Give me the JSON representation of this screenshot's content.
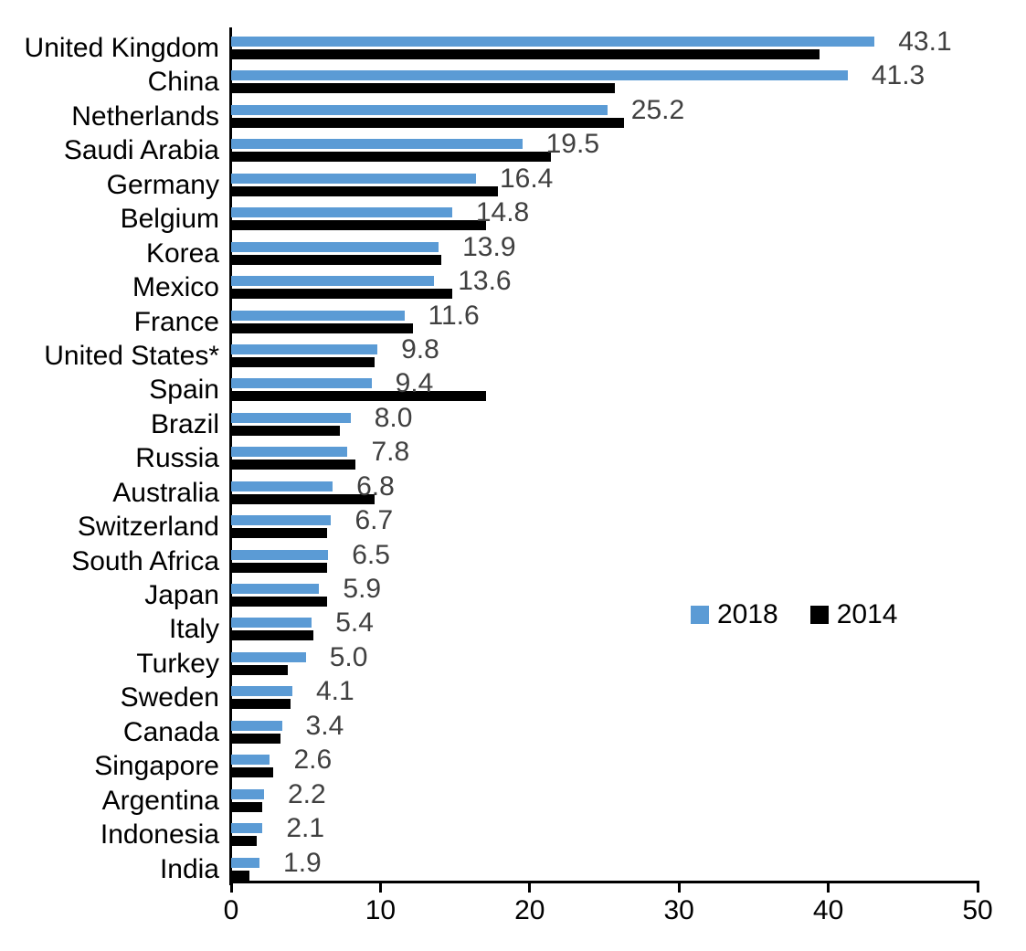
{
  "chart_data": {
    "type": "bar",
    "orientation": "horizontal",
    "title": "",
    "xlabel": "",
    "ylabel": "",
    "xlim": [
      0,
      50
    ],
    "x_ticks": [
      "0",
      "10",
      "20",
      "30",
      "40",
      "50"
    ],
    "grid": false,
    "legend_position": "middle-right",
    "categories": [
      "United Kingdom",
      "China",
      "Netherlands",
      "Saudi Arabia",
      "Germany",
      "Belgium",
      "Korea",
      "Mexico",
      "France",
      "United States*",
      "Spain",
      "Brazil",
      "Russia",
      "Australia",
      "Switzerland",
      "South Africa",
      "Japan",
      "Italy",
      "Turkey",
      "Sweden",
      "Canada",
      "Singapore",
      "Argentina",
      "Indonesia",
      "India"
    ],
    "series": [
      {
        "name": "2018",
        "color": "#5B9BD5",
        "values": [
          43.1,
          41.3,
          25.2,
          19.5,
          16.4,
          14.8,
          13.9,
          13.6,
          11.6,
          9.8,
          9.4,
          8.0,
          7.8,
          6.8,
          6.7,
          6.5,
          5.9,
          5.4,
          5.0,
          4.1,
          3.4,
          2.6,
          2.2,
          2.1,
          1.9
        ],
        "data_labels": [
          "43.1",
          "41.3",
          "25.2",
          "19.5",
          "16.4",
          "14.8",
          "13.9",
          "13.6",
          "11.6",
          "9.8",
          "9.4",
          "8.0",
          "7.8",
          "6.8",
          "6.7",
          "6.5",
          "5.9",
          "5.4",
          "5.0",
          "4.1",
          "3.4",
          "2.6",
          "2.2",
          "2.1",
          "1.9"
        ]
      },
      {
        "name": "2014",
        "color": "#000000",
        "values": [
          39.4,
          25.7,
          26.3,
          21.4,
          17.9,
          17.1,
          14.1,
          14.8,
          12.2,
          9.6,
          17.1,
          7.3,
          8.3,
          9.6,
          6.4,
          6.4,
          6.4,
          5.5,
          3.8,
          4.0,
          3.3,
          2.8,
          2.1,
          1.7,
          1.2
        ]
      }
    ],
    "data_label_color": "#404040",
    "axis_color": "#000000",
    "legend": {
      "entries": [
        "2018",
        "2014"
      ]
    }
  }
}
